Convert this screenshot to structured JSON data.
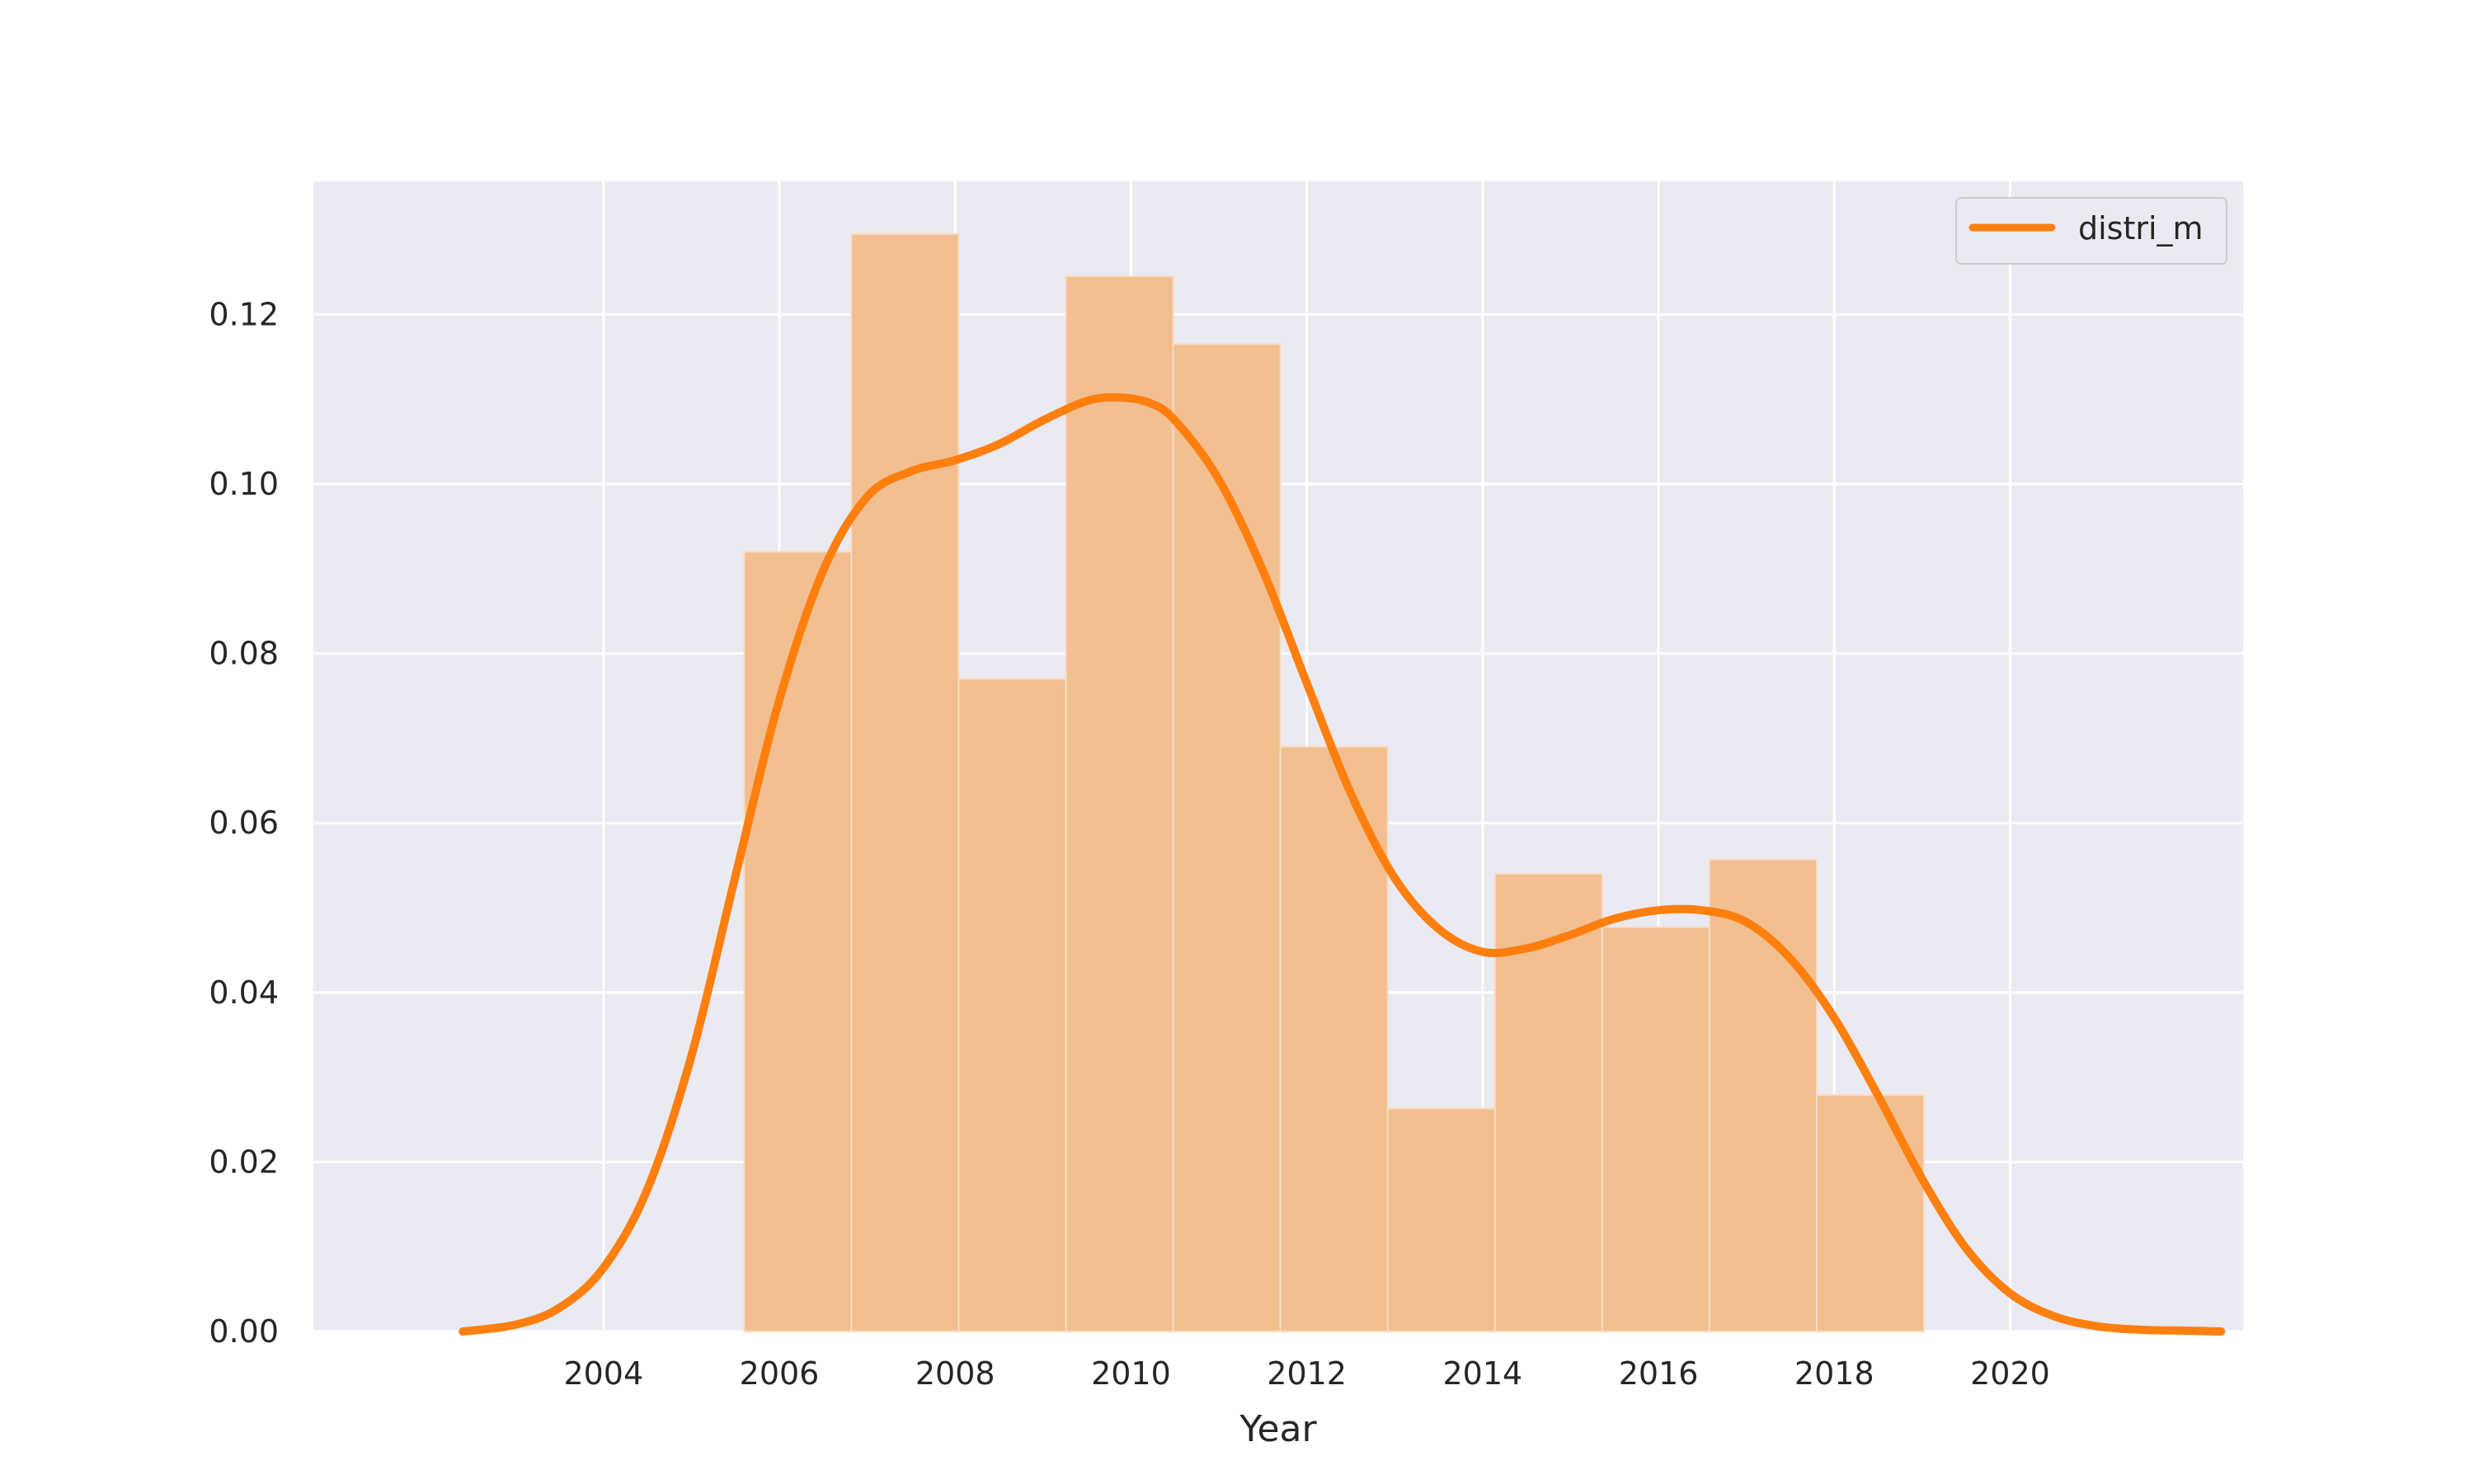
{
  "chart_data": {
    "type": "bar",
    "xlabel": "Year",
    "ylabel": "",
    "xlim": [
      2000.7,
      2022.65
    ],
    "ylim": [
      0,
      0.1357
    ],
    "x_ticks": [
      2004,
      2006,
      2008,
      2010,
      2012,
      2014,
      2016,
      2018,
      2020
    ],
    "y_ticks": [
      0.0,
      0.02,
      0.04,
      0.06,
      0.08,
      0.1,
      0.12
    ],
    "y_tick_labels": [
      "0.00",
      "0.02",
      "0.04",
      "0.06",
      "0.08",
      "0.10",
      "0.12"
    ],
    "grid": true,
    "legend_position": "top-right",
    "colors": {
      "plot_bg": "#eaeaf2",
      "grid": "#ffffff",
      "bar_fill": "#f2bf91",
      "bar_edge": "#f9dcc2",
      "line": "#ff7f0e"
    },
    "histogram": {
      "bin_edges": [
        2005.6,
        2006.82,
        2008.04,
        2009.26,
        2010.48,
        2011.7,
        2012.92,
        2014.14,
        2015.36,
        2016.58,
        2017.8,
        2019.02
      ],
      "densities": [
        0.092,
        0.1295,
        0.077,
        0.1245,
        0.1165,
        0.069,
        0.0263,
        0.054,
        0.0477,
        0.0557,
        0.0279
      ]
    },
    "series": [
      {
        "name": "distri_m",
        "type": "line",
        "x": [
          2002.4,
          2003.0,
          2003.5,
          2004.0,
          2004.5,
          2005.0,
          2005.5,
          2006.0,
          2006.5,
          2007.0,
          2007.5,
          2008.0,
          2008.5,
          2009.0,
          2009.5,
          2009.85,
          2010.2,
          2010.5,
          2011.0,
          2011.5,
          2012.0,
          2012.5,
          2013.0,
          2013.5,
          2014.0,
          2014.5,
          2015.0,
          2015.5,
          2016.0,
          2016.5,
          2017.0,
          2017.5,
          2018.0,
          2018.5,
          2019.0,
          2019.5,
          2020.0,
          2020.5,
          2021.0,
          2021.5,
          2022.0,
          2022.4
        ],
        "y": [
          0.0,
          0.0008,
          0.0028,
          0.0075,
          0.0168,
          0.0325,
          0.0537,
          0.0745,
          0.0898,
          0.0985,
          0.1015,
          0.1028,
          0.1047,
          0.1075,
          0.1098,
          0.1102,
          0.1096,
          0.1075,
          0.1005,
          0.0898,
          0.0765,
          0.0635,
          0.0535,
          0.0475,
          0.0448,
          0.0452,
          0.0468,
          0.0487,
          0.0497,
          0.0497,
          0.0483,
          0.044,
          0.037,
          0.0278,
          0.018,
          0.0098,
          0.0045,
          0.0018,
          0.0006,
          0.0002,
          0.0001,
          0.0
        ]
      }
    ]
  }
}
